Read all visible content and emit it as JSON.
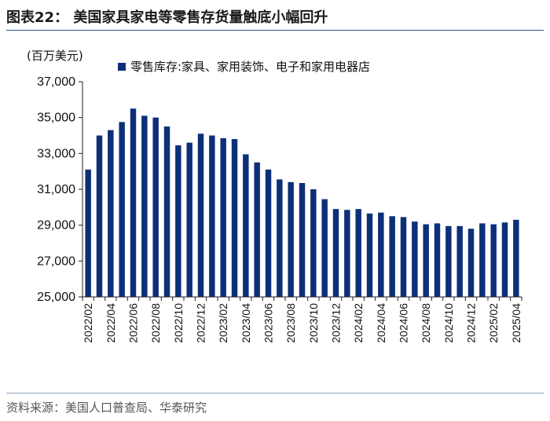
{
  "header": {
    "title": "图表22：  美国家具家电等零售存货量触底小幅回升"
  },
  "footer": {
    "source": "资料来源：美国人口普查局、华泰研究"
  },
  "chart_data": {
    "type": "bar",
    "title": "美国家具家电等零售存货量触底小幅回升",
    "unit_label": "(百万美元)",
    "xlabel": "",
    "ylabel": "(百万美元)",
    "ylim": [
      25000,
      37000
    ],
    "yticks": [
      25000,
      27000,
      29000,
      31000,
      33000,
      35000,
      37000
    ],
    "ytick_labels": [
      "25,000",
      "27,000",
      "29,000",
      "31,000",
      "33,000",
      "35,000",
      "37,000"
    ],
    "legend_position": "top",
    "categories": [
      "2022/02",
      "2022/03",
      "2022/04",
      "2022/05",
      "2022/06",
      "2022/07",
      "2022/08",
      "2022/09",
      "2022/10",
      "2022/11",
      "2022/12",
      "2023/01",
      "2023/02",
      "2023/03",
      "2023/04",
      "2023/05",
      "2023/06",
      "2023/07",
      "2023/08",
      "2023/09",
      "2023/10",
      "2023/11",
      "2023/12",
      "2024/01",
      "2024/02",
      "2024/03",
      "2024/04",
      "2024/05",
      "2024/06",
      "2024/07",
      "2024/08",
      "2024/09",
      "2024/10",
      "2024/11",
      "2024/12",
      "2025/01",
      "2025/02",
      "2025/03",
      "2025/04"
    ],
    "xtick_labels": [
      "2022/02",
      "2022/04",
      "2022/06",
      "2022/08",
      "2022/10",
      "2022/12",
      "2023/02",
      "2023/04",
      "2023/06",
      "2023/08",
      "2023/10",
      "2023/12",
      "2024/02",
      "2024/04",
      "2024/06",
      "2024/08",
      "2024/10",
      "2024/12",
      "2025/02",
      "2025/04"
    ],
    "series": [
      {
        "name": "零售库存:家具、家用装饰、电子和家用电器店",
        "color": "#0d2f7a",
        "values": [
          32100,
          34000,
          34300,
          34750,
          35500,
          35100,
          35000,
          34500,
          33450,
          33600,
          34100,
          34000,
          33850,
          33800,
          32950,
          32500,
          32100,
          31550,
          31400,
          31350,
          31000,
          30450,
          29900,
          29850,
          29900,
          29650,
          29700,
          29500,
          29450,
          29200,
          29050,
          29100,
          28950,
          28950,
          28800,
          29100,
          29050,
          29150,
          29300
        ]
      }
    ]
  }
}
